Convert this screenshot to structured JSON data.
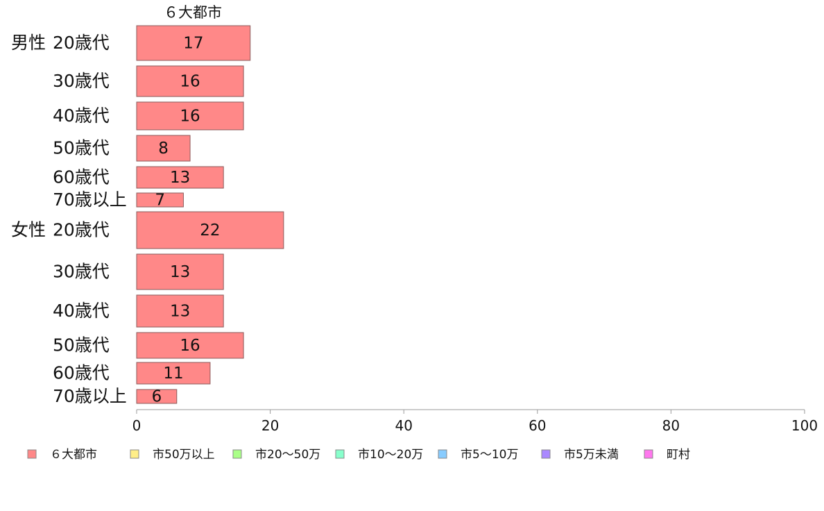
{
  "chart_data": {
    "type": "bar",
    "orientation": "horizontal",
    "stacked": true,
    "title": "６大都市",
    "xlim": [
      0,
      100
    ],
    "xticks": [
      0,
      20,
      40,
      60,
      80,
      100
    ],
    "grid": false,
    "legend_position": "bottom",
    "groups": [
      {
        "name": "男性",
        "rows": [
          {
            "label": "20歳代",
            "value": 17
          },
          {
            "label": "30歳代",
            "value": 16
          },
          {
            "label": "40歳代",
            "value": 16
          },
          {
            "label": "50歳代",
            "value": 8
          },
          {
            "label": "60歳代",
            "value": 13
          },
          {
            "label": "70歳以上",
            "value": 7
          }
        ]
      },
      {
        "name": "女性",
        "rows": [
          {
            "label": "20歳代",
            "value": 22
          },
          {
            "label": "30歳代",
            "value": 13
          },
          {
            "label": "40歳代",
            "value": 13
          },
          {
            "label": "50歳代",
            "value": 16
          },
          {
            "label": "60歳代",
            "value": 11
          },
          {
            "label": "70歳以上",
            "value": 6
          }
        ]
      }
    ],
    "series": [
      {
        "name": "６大都市",
        "color": "#ff8888"
      },
      {
        "name": "市50万以上",
        "color": "#ffee88"
      },
      {
        "name": "市20〜50万",
        "color": "#aaff88"
      },
      {
        "name": "市10〜20万",
        "color": "#88ffcc"
      },
      {
        "name": "市5〜10万",
        "color": "#88ccff"
      },
      {
        "name": "市5万未満",
        "color": "#aa88ff"
      },
      {
        "name": "町村",
        "color": "#ff77ee"
      }
    ]
  }
}
